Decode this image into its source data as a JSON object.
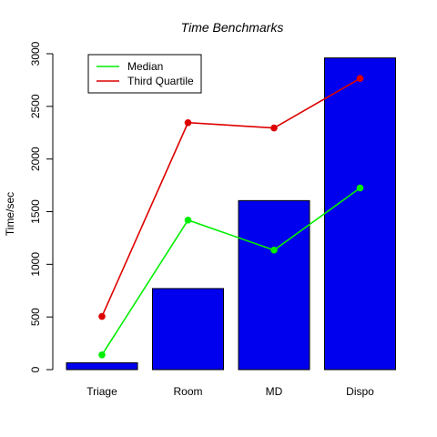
{
  "chart_data": {
    "type": "bar",
    "title": "Time Benchmarks",
    "xlabel": "",
    "ylabel": "Time/sec",
    "categories": [
      "Triage",
      "Room",
      "MD",
      "Dispo"
    ],
    "values": [
      65,
      770,
      1605,
      2960
    ],
    "ylim": [
      0,
      3000
    ],
    "yticks": [
      0,
      500,
      1000,
      1500,
      2000,
      2500,
      3000
    ],
    "grid": false,
    "legend_position": "top-left",
    "series": [
      {
        "name": "Median",
        "values": [
          140,
          1420,
          1135,
          1725
        ],
        "color": "#00ee00"
      },
      {
        "name": "Third Quartile",
        "values": [
          505,
          2345,
          2295,
          2765
        ],
        "color": "#dd0000"
      }
    ],
    "bar_color": "#0000ee"
  }
}
